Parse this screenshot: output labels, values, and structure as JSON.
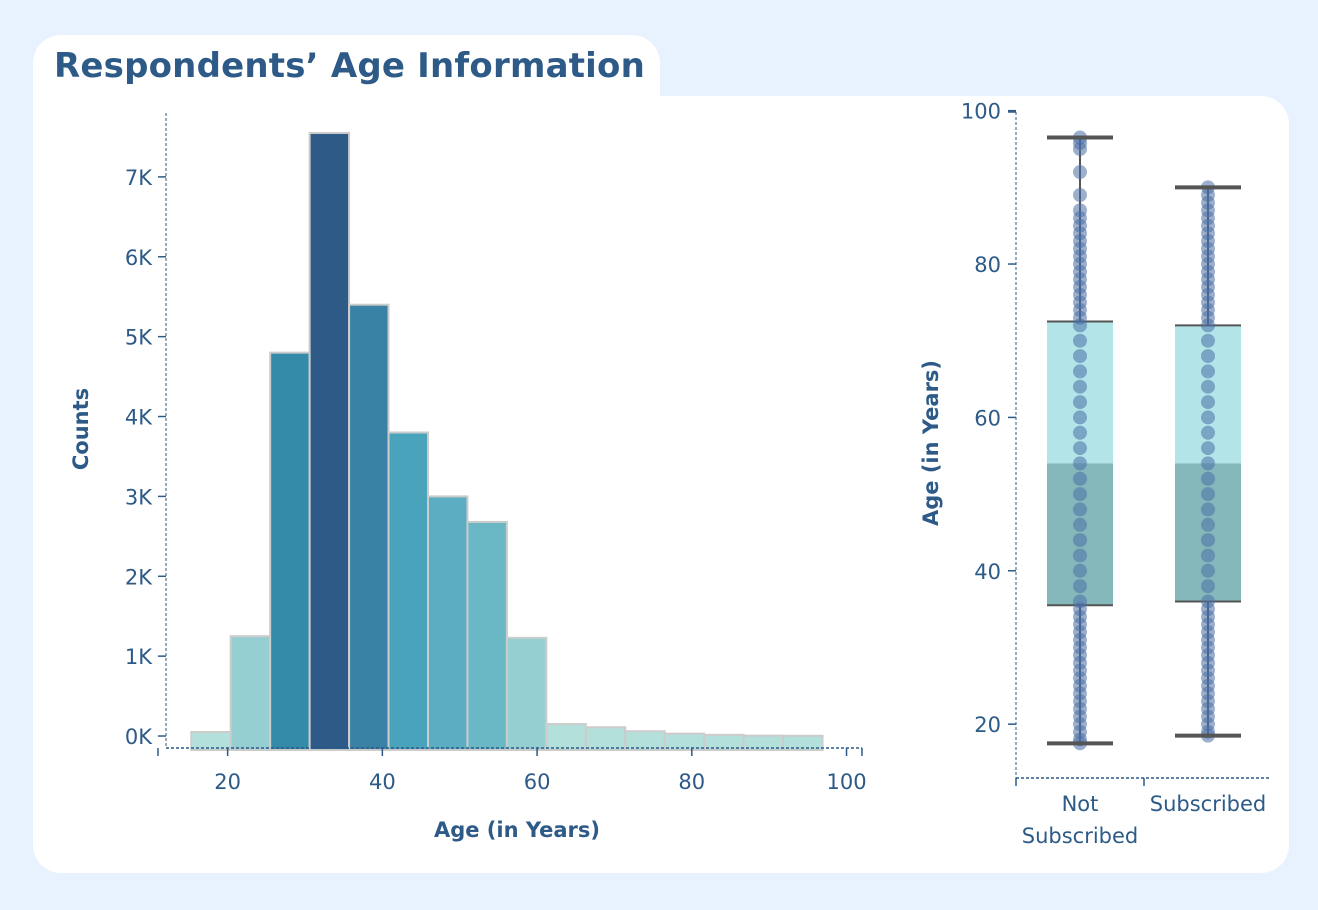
{
  "title": "Respondents’ Age Information",
  "colors": {
    "text": "#2d5a87",
    "background": "#e8f2fe",
    "card": "#ffffff",
    "bar_stroke": "#cccccc",
    "box_upper": "#b3e5e8",
    "box_lower": "#85b8ba",
    "points": "#4a6fa5",
    "whisker": "#555555"
  },
  "chart_data": [
    {
      "type": "bar",
      "subtype": "histogram",
      "xlabel": "Age (in Years)",
      "ylabel": "Counts",
      "xlim": [
        11,
        102
      ],
      "ylim": [
        -150,
        7800
      ],
      "xticks": [
        20,
        40,
        60,
        80,
        100
      ],
      "yticks": [
        0,
        1000,
        2000,
        3000,
        4000,
        5000,
        6000,
        7000
      ],
      "ytick_labels": [
        "0K",
        "1K",
        "2K",
        "3K",
        "4K",
        "5K",
        "6K",
        "7K"
      ],
      "bins": [
        {
          "x0": 15.3,
          "x1": 20.4,
          "value": 50,
          "color": "#b3e0da"
        },
        {
          "x0": 20.4,
          "x1": 25.5,
          "value": 1250,
          "color": "#96cfd2"
        },
        {
          "x0": 25.5,
          "x1": 30.6,
          "value": 4800,
          "color": "#348aa9"
        },
        {
          "x0": 30.6,
          "x1": 35.7,
          "value": 7550,
          "color": "#2d5a87"
        },
        {
          "x0": 35.7,
          "x1": 40.8,
          "value": 5400,
          "color": "#3a82a5"
        },
        {
          "x0": 40.8,
          "x1": 45.9,
          "value": 3800,
          "color": "#48a3bb"
        },
        {
          "x0": 45.9,
          "x1": 51.0,
          "value": 3000,
          "color": "#5baec2"
        },
        {
          "x0": 51.0,
          "x1": 56.1,
          "value": 2680,
          "color": "#6ab7c6"
        },
        {
          "x0": 56.1,
          "x1": 61.2,
          "value": 1230,
          "color": "#96cfd2"
        },
        {
          "x0": 61.2,
          "x1": 66.3,
          "value": 150,
          "color": "#b3e0da"
        },
        {
          "x0": 66.3,
          "x1": 71.4,
          "value": 110,
          "color": "#b3e0da"
        },
        {
          "x0": 71.4,
          "x1": 76.5,
          "value": 60,
          "color": "#b3e0da"
        },
        {
          "x0": 76.5,
          "x1": 81.6,
          "value": 30,
          "color": "#b3e0da"
        },
        {
          "x0": 81.6,
          "x1": 86.7,
          "value": 15,
          "color": "#b3e0da"
        },
        {
          "x0": 86.7,
          "x1": 91.8,
          "value": 5,
          "color": "#b3e0da"
        },
        {
          "x0": 91.8,
          "x1": 96.9,
          "value": 3,
          "color": "#b3e0da"
        }
      ]
    },
    {
      "type": "box",
      "ylabel": "Age (in Years)",
      "ylim": [
        13,
        102
      ],
      "yticks": [
        20,
        40,
        60,
        80,
        100
      ],
      "categories": [
        "Not\nSubscribed",
        "Subscribed"
      ],
      "series": [
        {
          "category": "Not\nSubscribed",
          "min": 17.5,
          "q1": 35.5,
          "median": 54,
          "q3": 72.5,
          "max": 96.5,
          "outliers": [],
          "points": [
            96.5,
            95.8,
            95,
            92,
            89,
            87,
            86,
            85,
            84,
            83,
            82,
            81,
            80,
            79,
            78,
            77,
            76,
            75,
            74,
            73,
            72,
            70,
            68,
            66,
            64,
            62,
            60,
            58,
            56,
            54,
            52,
            50,
            48,
            46,
            44,
            42,
            40,
            38,
            36,
            35,
            34,
            33,
            32,
            31,
            30,
            29,
            28,
            27,
            26,
            25,
            24,
            23,
            22,
            21,
            20,
            19,
            18,
            17.5
          ]
        },
        {
          "category": "Subscribed",
          "min": 18.5,
          "q1": 36,
          "median": 54,
          "q3": 72,
          "max": 90,
          "outliers": [],
          "points": [
            90,
            89,
            88,
            87,
            86,
            85,
            84,
            83,
            82,
            81,
            80,
            79,
            78,
            77,
            76,
            75,
            74,
            73,
            72,
            70,
            68,
            66,
            64,
            62,
            60,
            58,
            56,
            54,
            52,
            50,
            48,
            46,
            44,
            42,
            40,
            38,
            36,
            35,
            34,
            33,
            32,
            31,
            30,
            29,
            28,
            27,
            26,
            25,
            24,
            23,
            22,
            21,
            20,
            19,
            18.5
          ]
        }
      ]
    }
  ]
}
